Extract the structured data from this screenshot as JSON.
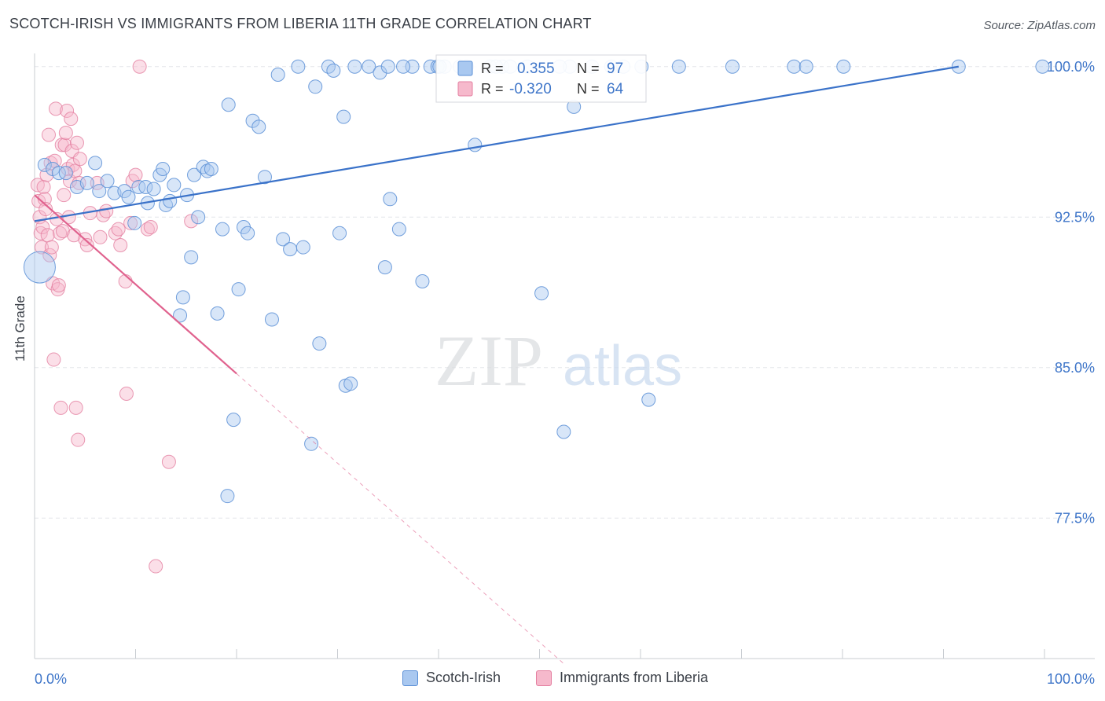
{
  "chart_data": {
    "type": "scatter",
    "title": "SCOTCH-IRISH VS IMMIGRANTS FROM LIBERIA 11TH GRADE CORRELATION CHART",
    "source": "Source: ZipAtlas.com",
    "ylabel": "11th Grade",
    "xlim": [
      0,
      100
    ],
    "ylim": [
      70.5,
      100.5
    ],
    "x_tick_labels": {
      "left": "0.0%",
      "right": "100.0%"
    },
    "y_ticks": [
      {
        "value": 100.0,
        "label": "100.0%"
      },
      {
        "value": 92.5,
        "label": "92.5%"
      },
      {
        "value": 85.0,
        "label": "85.0%"
      },
      {
        "value": 77.5,
        "label": "77.5%"
      }
    ],
    "grid": true,
    "legend_placement": "top-center",
    "colors": {
      "blue_fill": "#a9c8f0",
      "blue_stroke": "#5b8fd6",
      "blue_line": "#3a72c9",
      "pink_fill": "#f6b9cc",
      "pink_stroke": "#e47fa0",
      "pink_line": "#e0628e",
      "value_text": "#3f76c9",
      "grid": "#e3e6ea"
    },
    "legend": {
      "rows": [
        {
          "r_label": "R =",
          "r_value": "0.355",
          "n_label": "N =",
          "n_value": "97"
        },
        {
          "r_label": "R =",
          "r_value": "-0.320",
          "n_label": "N =",
          "n_value": "64"
        }
      ]
    },
    "series": [
      {
        "name": "Scotch-Irish",
        "color": "#a9c8f0",
        "trend": {
          "x0": 0,
          "y0": 92.3,
          "x1": 91.5,
          "y1": 100.0
        },
        "points": [
          [
            1.0,
            95.1
          ],
          [
            1.8,
            94.9
          ],
          [
            2.4,
            94.7
          ],
          [
            3.1,
            94.7
          ],
          [
            4.2,
            94.0
          ],
          [
            5.2,
            94.2
          ],
          [
            6.0,
            95.2
          ],
          [
            6.4,
            93.8
          ],
          [
            7.2,
            94.3
          ],
          [
            7.9,
            93.7
          ],
          [
            8.9,
            93.8
          ],
          [
            9.3,
            93.5
          ],
          [
            9.9,
            92.2
          ],
          [
            10.3,
            94.0
          ],
          [
            11.0,
            94.0
          ],
          [
            11.2,
            93.2
          ],
          [
            11.8,
            93.9
          ],
          [
            12.4,
            94.6
          ],
          [
            12.7,
            94.9
          ],
          [
            13.0,
            93.1
          ],
          [
            13.4,
            93.3
          ],
          [
            13.8,
            94.1
          ],
          [
            14.4,
            87.6
          ],
          [
            14.7,
            88.5
          ],
          [
            15.1,
            93.6
          ],
          [
            15.5,
            90.5
          ],
          [
            15.8,
            94.6
          ],
          [
            16.2,
            92.5
          ],
          [
            16.7,
            95.0
          ],
          [
            17.1,
            94.8
          ],
          [
            17.5,
            94.9
          ],
          [
            18.1,
            87.7
          ],
          [
            18.6,
            91.9
          ],
          [
            19.1,
            78.6
          ],
          [
            19.2,
            98.1
          ],
          [
            19.7,
            82.4
          ],
          [
            20.2,
            88.9
          ],
          [
            20.7,
            92.0
          ],
          [
            21.1,
            91.7
          ],
          [
            21.6,
            97.3
          ],
          [
            22.2,
            97.0
          ],
          [
            22.8,
            94.5
          ],
          [
            23.5,
            87.4
          ],
          [
            24.1,
            99.6
          ],
          [
            24.6,
            91.4
          ],
          [
            25.3,
            90.9
          ],
          [
            26.1,
            100.0
          ],
          [
            26.6,
            91.0
          ],
          [
            27.4,
            81.2
          ],
          [
            27.8,
            99.0
          ],
          [
            28.2,
            86.2
          ],
          [
            29.1,
            100.0
          ],
          [
            29.6,
            99.8
          ],
          [
            30.2,
            91.7
          ],
          [
            30.6,
            97.5
          ],
          [
            30.8,
            84.1
          ],
          [
            31.3,
            84.2
          ],
          [
            31.7,
            100.0
          ],
          [
            33.1,
            100.0
          ],
          [
            34.2,
            99.7
          ],
          [
            34.7,
            90.0
          ],
          [
            35.0,
            100.0
          ],
          [
            35.2,
            93.4
          ],
          [
            36.1,
            91.9
          ],
          [
            37.4,
            100.0
          ],
          [
            38.4,
            89.3
          ],
          [
            39.2,
            100.0
          ],
          [
            39.9,
            100.0
          ],
          [
            40.6,
            100.0
          ],
          [
            42.1,
            100.0
          ],
          [
            42.8,
            100.0
          ],
          [
            43.6,
            96.1
          ],
          [
            45.1,
            100.0
          ],
          [
            46.3,
            100.0
          ],
          [
            47.1,
            100.0
          ],
          [
            48.8,
            100.0
          ],
          [
            50.2,
            88.7
          ],
          [
            52.4,
            81.8
          ],
          [
            53.0,
            100.0
          ],
          [
            53.4,
            98.0
          ],
          [
            55.2,
            100.0
          ],
          [
            57.1,
            100.0
          ],
          [
            60.8,
            83.4
          ],
          [
            63.8,
            100.0
          ],
          [
            69.1,
            100.0
          ],
          [
            75.2,
            100.0
          ],
          [
            76.4,
            100.0
          ],
          [
            80.1,
            100.0
          ],
          [
            91.5,
            100.0
          ],
          [
            99.8,
            100.0
          ],
          [
            60.1,
            100.0
          ],
          [
            58.3,
            100.0
          ],
          [
            40.1,
            100.0
          ],
          [
            36.5,
            100.0
          ],
          [
            45.7,
            100.0
          ],
          [
            0.5,
            90.0
          ],
          [
            52.0,
            100.0
          ]
        ]
      },
      {
        "name": "Immigrants from Liberia",
        "color": "#f6b9cc",
        "trend": {
          "x0": 0,
          "y0": 93.6,
          "x1": 20.0,
          "y1": 84.7,
          "dash_x1": 52.5,
          "dash_y1": 70.2
        },
        "points": [
          [
            0.3,
            94.1
          ],
          [
            0.4,
            93.3
          ],
          [
            0.5,
            92.5
          ],
          [
            0.6,
            91.7
          ],
          [
            0.7,
            91.0
          ],
          [
            0.8,
            92.0
          ],
          [
            0.9,
            94.0
          ],
          [
            1.0,
            93.4
          ],
          [
            1.1,
            92.9
          ],
          [
            1.2,
            94.6
          ],
          [
            1.3,
            91.6
          ],
          [
            1.4,
            96.6
          ],
          [
            1.5,
            90.6
          ],
          [
            1.6,
            95.2
          ],
          [
            1.7,
            91.0
          ],
          [
            1.8,
            89.2
          ],
          [
            1.9,
            85.4
          ],
          [
            2.0,
            95.3
          ],
          [
            2.1,
            97.9
          ],
          [
            2.2,
            92.4
          ],
          [
            2.3,
            88.9
          ],
          [
            2.4,
            89.1
          ],
          [
            2.5,
            91.7
          ],
          [
            2.6,
            83.0
          ],
          [
            2.7,
            96.1
          ],
          [
            2.8,
            91.8
          ],
          [
            2.9,
            93.6
          ],
          [
            3.0,
            96.1
          ],
          [
            3.1,
            96.7
          ],
          [
            3.2,
            97.8
          ],
          [
            3.3,
            94.9
          ],
          [
            3.4,
            92.5
          ],
          [
            3.5,
            94.3
          ],
          [
            3.6,
            97.4
          ],
          [
            3.7,
            95.8
          ],
          [
            3.8,
            95.1
          ],
          [
            3.9,
            91.6
          ],
          [
            4.0,
            94.8
          ],
          [
            4.1,
            83.0
          ],
          [
            4.2,
            96.2
          ],
          [
            4.3,
            81.4
          ],
          [
            4.4,
            94.2
          ],
          [
            4.5,
            95.4
          ],
          [
            5.0,
            91.4
          ],
          [
            5.2,
            91.1
          ],
          [
            5.5,
            92.7
          ],
          [
            6.2,
            94.2
          ],
          [
            6.5,
            91.5
          ],
          [
            6.8,
            92.6
          ],
          [
            7.1,
            92.8
          ],
          [
            8.0,
            91.7
          ],
          [
            8.3,
            91.9
          ],
          [
            8.5,
            91.1
          ],
          [
            9.0,
            89.3
          ],
          [
            9.1,
            83.7
          ],
          [
            9.5,
            92.2
          ],
          [
            9.7,
            94.3
          ],
          [
            10.0,
            94.6
          ],
          [
            10.4,
            100.0
          ],
          [
            11.2,
            91.9
          ],
          [
            11.5,
            92.0
          ],
          [
            13.3,
            80.3
          ],
          [
            12.0,
            75.1
          ],
          [
            15.5,
            92.3
          ]
        ]
      }
    ]
  },
  "legend_bottom": {
    "item1": "Scotch-Irish",
    "item2": "Immigrants from Liberia"
  },
  "watermark": {
    "zip": "ZIP",
    "atlas": "atlas"
  }
}
